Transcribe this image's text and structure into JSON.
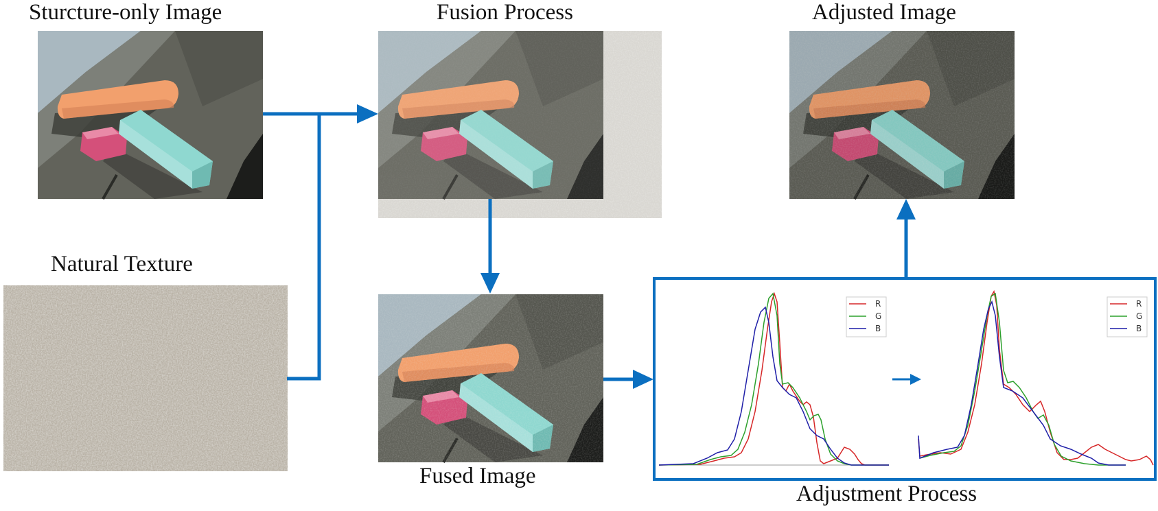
{
  "labels": {
    "structure_only": "Sturcture-only Image",
    "fusion_process": "Fusion Process",
    "adjusted_image": "Adjusted Image",
    "natural_texture": "Natural Texture",
    "fused_image": "Fused Image",
    "adjustment_process": "Adjustment Process"
  },
  "histogram_legend": [
    "R",
    "G",
    "B"
  ],
  "colors": {
    "arrow": "#0b6fc0",
    "red": "#d62728",
    "green": "#2ca02c",
    "blue": "#1f1fa8",
    "chalk_orange": "#f2a06d",
    "chalk_teal": "#8fd8d0",
    "chalk_pink": "#d4507a",
    "surface": "#5f6058"
  }
}
